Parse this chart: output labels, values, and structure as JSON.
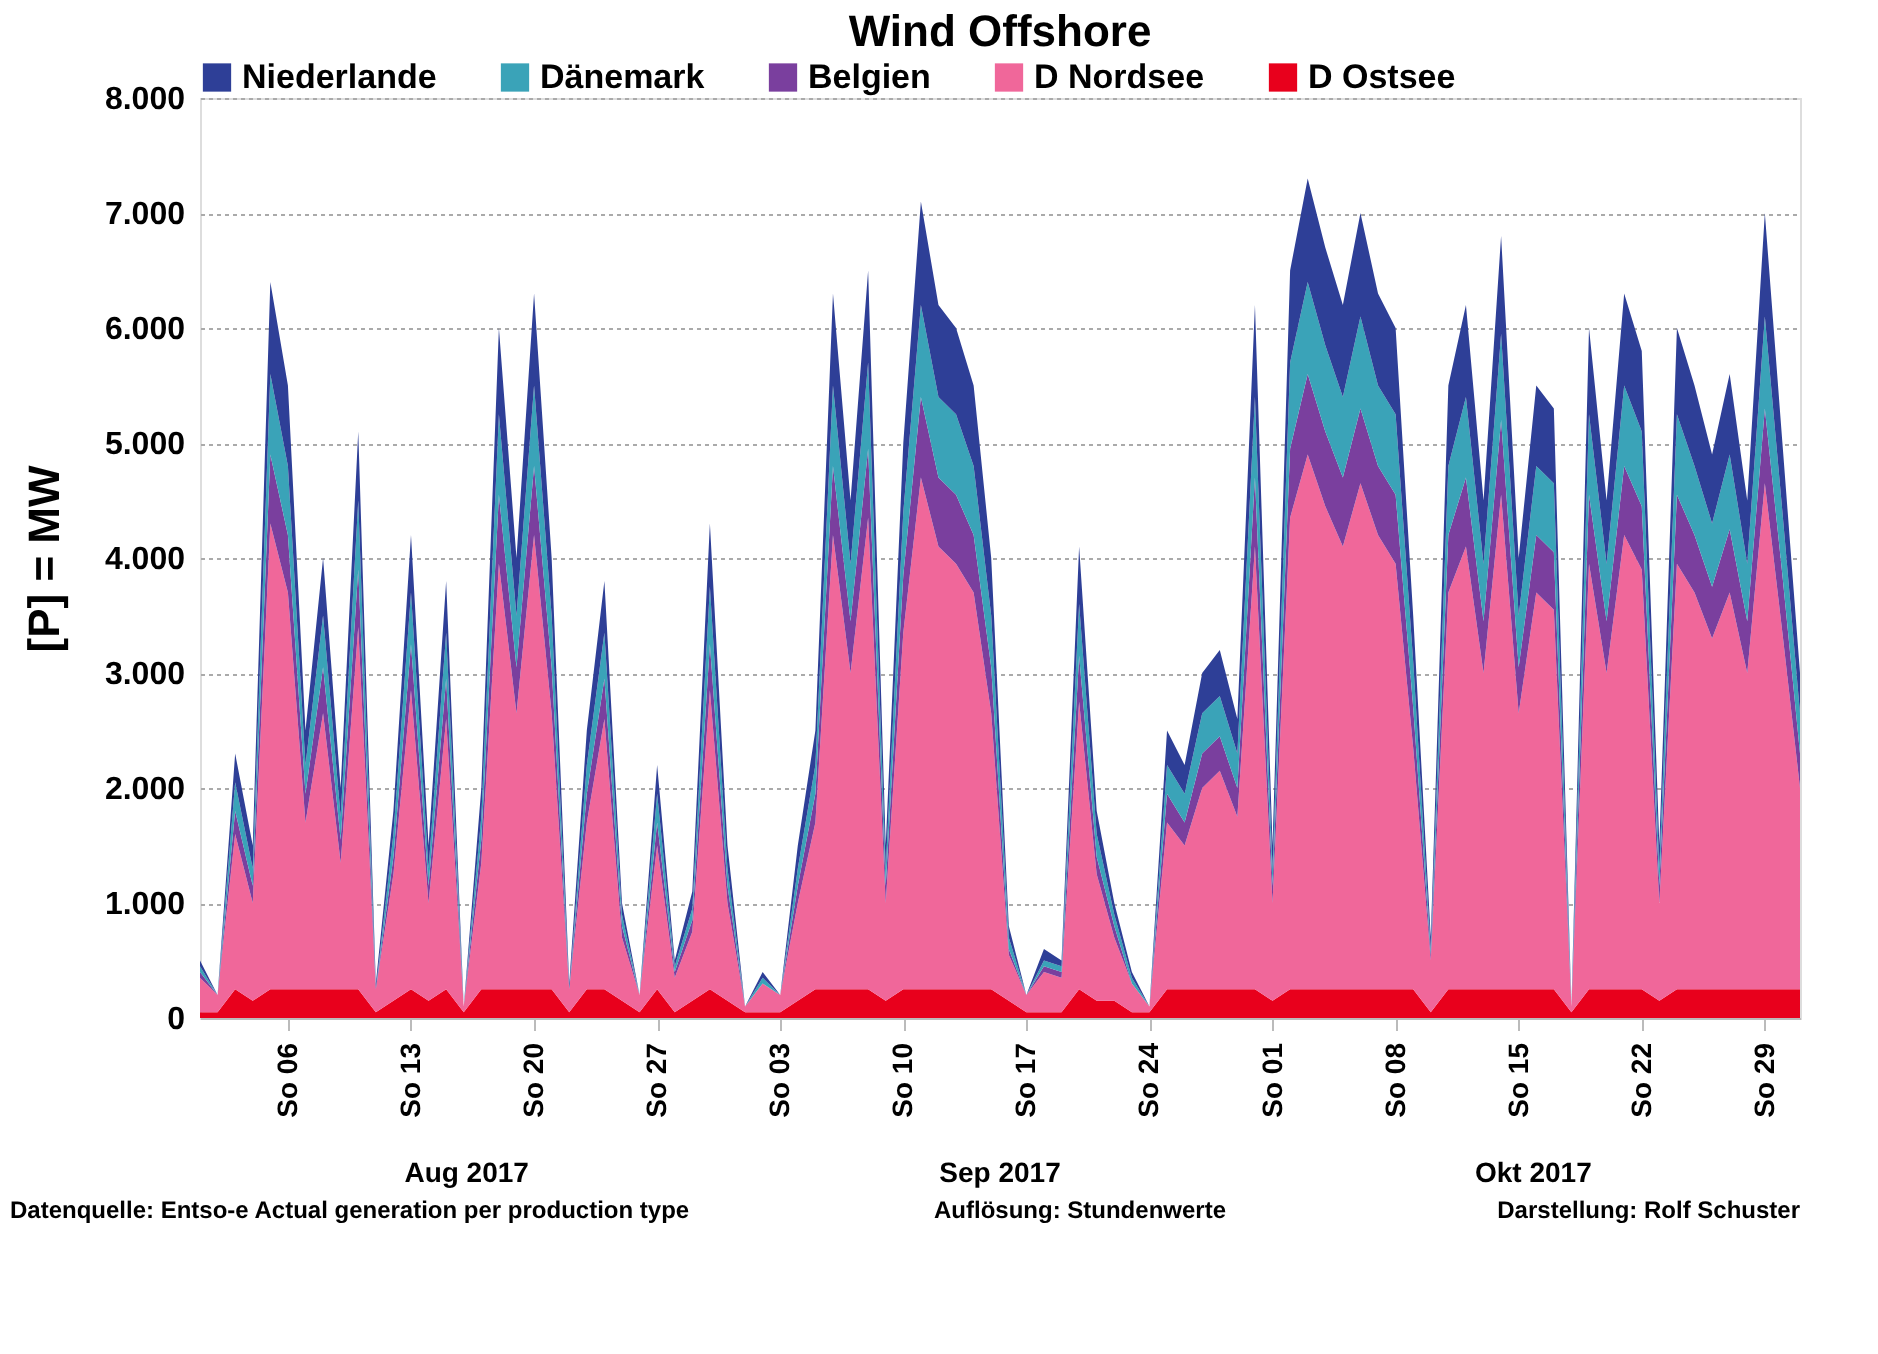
{
  "chart_data": {
    "type": "area",
    "title": "Wind Offshore",
    "ylabel": "[P]  = MW",
    "stacked": true,
    "legend": "top",
    "grid": "y",
    "x": [
      "2017-08-01",
      "2017-08-02",
      "2017-08-03",
      "2017-08-04",
      "2017-08-05",
      "2017-08-06",
      "2017-08-07",
      "2017-08-08",
      "2017-08-09",
      "2017-08-10",
      "2017-08-11",
      "2017-08-12",
      "2017-08-13",
      "2017-08-14",
      "2017-08-15",
      "2017-08-16",
      "2017-08-17",
      "2017-08-18",
      "2017-08-19",
      "2017-08-20",
      "2017-08-21",
      "2017-08-22",
      "2017-08-23",
      "2017-08-24",
      "2017-08-25",
      "2017-08-26",
      "2017-08-27",
      "2017-08-28",
      "2017-08-29",
      "2017-08-30",
      "2017-08-31",
      "2017-09-01",
      "2017-09-02",
      "2017-09-03",
      "2017-09-04",
      "2017-09-05",
      "2017-09-06",
      "2017-09-07",
      "2017-09-08",
      "2017-09-09",
      "2017-09-10",
      "2017-09-11",
      "2017-09-12",
      "2017-09-13",
      "2017-09-14",
      "2017-09-15",
      "2017-09-16",
      "2017-09-17",
      "2017-09-18",
      "2017-09-19",
      "2017-09-20",
      "2017-09-21",
      "2017-09-22",
      "2017-09-23",
      "2017-09-24",
      "2017-09-25",
      "2017-09-26",
      "2017-09-27",
      "2017-09-28",
      "2017-09-29",
      "2017-09-30",
      "2017-10-01",
      "2017-10-02",
      "2017-10-03",
      "2017-10-04",
      "2017-10-05",
      "2017-10-06",
      "2017-10-07",
      "2017-10-08",
      "2017-10-09",
      "2017-10-10",
      "2017-10-11",
      "2017-10-12",
      "2017-10-13",
      "2017-10-14",
      "2017-10-15",
      "2017-10-16",
      "2017-10-17",
      "2017-10-18",
      "2017-10-19",
      "2017-10-20",
      "2017-10-21",
      "2017-10-22",
      "2017-10-23",
      "2017-10-24",
      "2017-10-25",
      "2017-10-26",
      "2017-10-27",
      "2017-10-28",
      "2017-10-29",
      "2017-10-30",
      "2017-10-31"
    ],
    "series": [
      {
        "name": "D Ostsee",
        "color": "#e8001c",
        "values": [
          50,
          50,
          250,
          150,
          250,
          250,
          250,
          250,
          250,
          250,
          50,
          150,
          250,
          150,
          250,
          50,
          250,
          250,
          250,
          250,
          250,
          50,
          250,
          250,
          150,
          50,
          250,
          50,
          150,
          250,
          150,
          50,
          50,
          50,
          150,
          250,
          250,
          250,
          250,
          150,
          250,
          250,
          250,
          250,
          250,
          250,
          150,
          50,
          50,
          50,
          250,
          150,
          150,
          50,
          50,
          250,
          250,
          250,
          250,
          250,
          250,
          150,
          250,
          250,
          250,
          250,
          250,
          250,
          250,
          250,
          50,
          250,
          250,
          250,
          250,
          250,
          250,
          250,
          50,
          250,
          250,
          250,
          250,
          150,
          250,
          250,
          250,
          250,
          250,
          250,
          250,
          250
        ]
      },
      {
        "name": "D Nordsee",
        "color": "#f0679a",
        "values": [
          300,
          150,
          1350,
          850,
          4050,
          3450,
          1450,
          2400,
          1100,
          3150,
          200,
          1100,
          2600,
          850,
          2350,
          50,
          1100,
          3700,
          2400,
          3950,
          2400,
          200,
          1450,
          2350,
          550,
          150,
          1250,
          300,
          600,
          2600,
          850,
          50,
          250,
          150,
          850,
          1450,
          3950,
          2750,
          4100,
          850,
          3100,
          4450,
          3850,
          3700,
          3450,
          2400,
          400,
          150,
          350,
          300,
          2500,
          1100,
          550,
          250,
          50,
          1450,
          1250,
          1750,
          1900,
          1500,
          3850,
          850,
          4100,
          4650,
          4200,
          3850,
          4400,
          3950,
          3700,
          2100,
          450,
          3450,
          3850,
          2750,
          4300,
          2400,
          3450,
          3300,
          50,
          3700,
          2750,
          3950,
          3650,
          850,
          3700,
          3450,
          3050,
          3450,
          2750,
          4400,
          3100,
          1750
        ]
      },
      {
        "name": "Belgien",
        "color": "#7a3f9e",
        "values": [
          50,
          0,
          200,
          150,
          600,
          500,
          250,
          400,
          200,
          500,
          0,
          150,
          400,
          150,
          350,
          0,
          200,
          600,
          400,
          600,
          400,
          0,
          250,
          350,
          100,
          0,
          200,
          50,
          100,
          400,
          150,
          0,
          0,
          0,
          150,
          250,
          600,
          450,
          600,
          150,
          500,
          700,
          600,
          600,
          500,
          400,
          50,
          0,
          50,
          50,
          400,
          150,
          100,
          0,
          0,
          250,
          200,
          300,
          300,
          250,
          600,
          150,
          600,
          700,
          650,
          600,
          650,
          600,
          600,
          350,
          50,
          500,
          600,
          450,
          650,
          400,
          500,
          500,
          0,
          600,
          450,
          600,
          550,
          150,
          600,
          500,
          450,
          550,
          450,
          650,
          500,
          300
        ]
      },
      {
        "name": "Dänemark",
        "color": "#3aa3b8",
        "values": [
          50,
          0,
          250,
          150,
          700,
          600,
          250,
          450,
          200,
          600,
          0,
          200,
          450,
          150,
          400,
          0,
          200,
          700,
          450,
          700,
          450,
          0,
          250,
          400,
          100,
          0,
          250,
          50,
          100,
          500,
          150,
          0,
          50,
          0,
          150,
          250,
          700,
          500,
          750,
          150,
          550,
          800,
          700,
          700,
          600,
          450,
          100,
          0,
          50,
          50,
          450,
          200,
          100,
          50,
          0,
          250,
          250,
          350,
          350,
          300,
          700,
          150,
          750,
          800,
          750,
          700,
          800,
          700,
          700,
          400,
          50,
          600,
          700,
          500,
          750,
          450,
          600,
          600,
          0,
          700,
          500,
          700,
          650,
          150,
          700,
          600,
          550,
          650,
          500,
          800,
          550,
          350
        ]
      },
      {
        "name": "Niederlande",
        "color": "#2e3f97",
        "values": [
          50,
          0,
          250,
          200,
          800,
          700,
          300,
          500,
          250,
          600,
          50,
          200,
          500,
          200,
          450,
          0,
          250,
          750,
          500,
          800,
          500,
          50,
          300,
          450,
          100,
          0,
          250,
          50,
          150,
          550,
          200,
          0,
          50,
          0,
          200,
          300,
          800,
          550,
          800,
          200,
          600,
          900,
          800,
          750,
          700,
          500,
          100,
          0,
          100,
          50,
          500,
          200,
          100,
          50,
          0,
          300,
          250,
          350,
          400,
          300,
          800,
          200,
          800,
          900,
          850,
          800,
          900,
          800,
          750,
          400,
          100,
          700,
          800,
          550,
          850,
          500,
          700,
          650,
          0,
          750,
          550,
          800,
          700,
          200,
          750,
          700,
          600,
          700,
          550,
          900,
          600,
          350
        ]
      }
    ],
    "xlim": [
      "2017-08-01",
      "2017-10-31"
    ],
    "xticks": [
      {
        "value": "2017-08-06",
        "label": "So 06"
      },
      {
        "value": "2017-08-13",
        "label": "So 13"
      },
      {
        "value": "2017-08-20",
        "label": "So 20"
      },
      {
        "value": "2017-08-27",
        "label": "So 27"
      },
      {
        "value": "2017-09-03",
        "label": "So 03"
      },
      {
        "value": "2017-09-10",
        "label": "So 10"
      },
      {
        "value": "2017-09-17",
        "label": "So 17"
      },
      {
        "value": "2017-09-24",
        "label": "So 24"
      },
      {
        "value": "2017-10-01",
        "label": "So 01"
      },
      {
        "value": "2017-10-08",
        "label": "So 08"
      },
      {
        "value": "2017-10-15",
        "label": "So 15"
      },
      {
        "value": "2017-10-22",
        "label": "So 22"
      },
      {
        "value": "2017-10-29",
        "label": "So 29"
      }
    ],
    "ylim": [
      0,
      8000
    ],
    "yticks": [
      {
        "value": 0,
        "label": "0"
      },
      {
        "value": 1000,
        "label": "1.000"
      },
      {
        "value": 2000,
        "label": "2.000"
      },
      {
        "value": 3000,
        "label": "3.000"
      },
      {
        "value": 4000,
        "label": "4.000"
      },
      {
        "value": 5000,
        "label": "5.000"
      },
      {
        "value": 6000,
        "label": "6.000"
      },
      {
        "value": 7000,
        "label": "7.000"
      },
      {
        "value": 8000,
        "label": "8.000"
      }
    ],
    "annotations": [
      "Aug 2017",
      "Sep 2017",
      "Okt 2017",
      "Datenquelle: Entso-e  Actual generation per production type",
      "Auflösung: Stundenwerte",
      "Darstellung:  Rolf Schuster"
    ]
  }
}
